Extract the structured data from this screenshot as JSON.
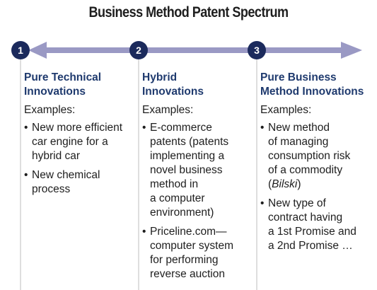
{
  "title": "Business Method Patent Spectrum",
  "colors": {
    "circle": "#1b2a5c",
    "arrow": "#9a99c4",
    "heading": "#1f3a6e",
    "divider": "#bcbcbc"
  },
  "columns": [
    {
      "number": "1",
      "heading": "Pure Technical\nInnovations",
      "examples_label": "Examples:",
      "bullets": [
        "New more efficient\ncar engine for a\nhybrid car",
        "New chemical\nprocess"
      ]
    },
    {
      "number": "2",
      "heading": "Hybrid\nInnovations",
      "examples_label": "Examples:",
      "bullets": [
        "E-commerce\npatents (patents\nimplementing a\nnovel business\nmethod in\na computer\nenvironment)",
        "Priceline.com—\ncomputer system\nfor performing\nreverse auction"
      ]
    },
    {
      "number": "3",
      "heading": "Pure Business\nMethod Innovations",
      "examples_label": "Examples:",
      "bullets": [
        {
          "text": "New method\nof managing\nconsumption risk\nof a commodity\n(",
          "italic": "Bilski",
          "after": ")"
        },
        "New type of\ncontract having\na 1st Promise and\na 2nd Promise …"
      ]
    }
  ]
}
